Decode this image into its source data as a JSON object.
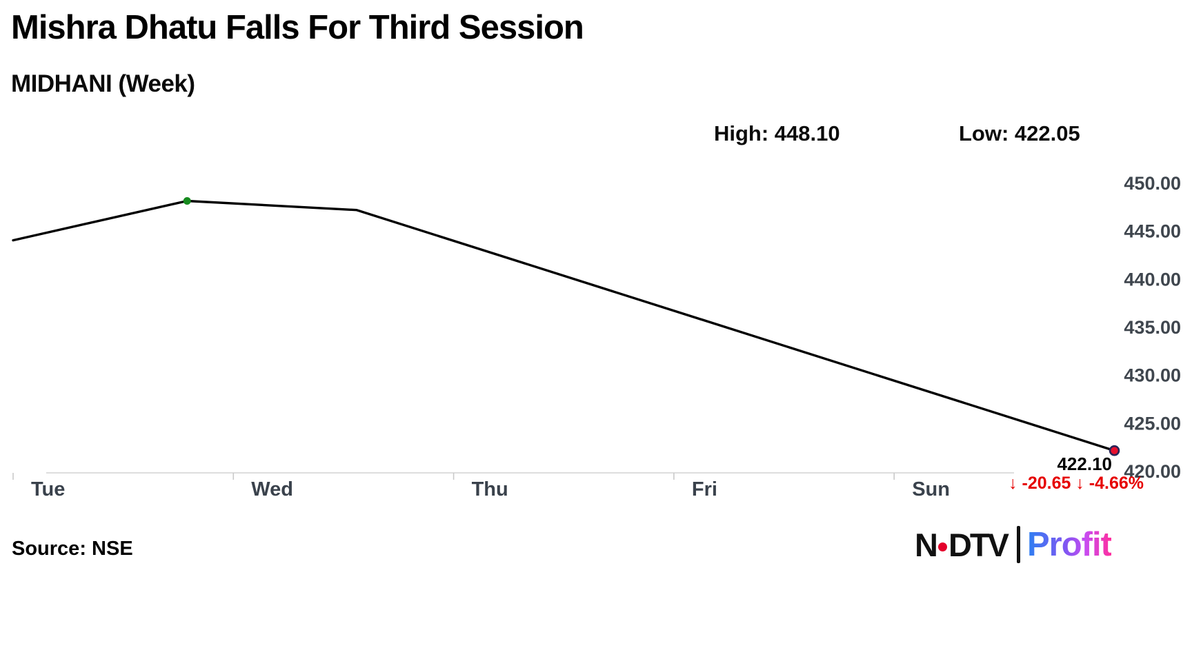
{
  "title": "Mishra Dhatu Falls For Third Session",
  "subtitle": "MIDHANI (Week)",
  "stats": {
    "high": "High: 448.10",
    "low": "Low: 422.05"
  },
  "chart_data": {
    "type": "line",
    "title": "MIDHANI (Week)",
    "series_name": "MIDHANI weekly price",
    "categories": [
      "Tue",
      "Wed",
      "Thu",
      "Fri",
      "Sun"
    ],
    "points": [
      {
        "x": 0.0,
        "y": 444.0
      },
      {
        "x": 0.79,
        "y": 448.1
      },
      {
        "x": 1.56,
        "y": 447.15
      },
      {
        "x": 5.0,
        "y": 422.1
      }
    ],
    "x_unit": "sessions (0 = Tue, labels mark day start)",
    "xlim": [
      0,
      5.02
    ],
    "y_ticks": [
      450,
      445,
      440,
      435,
      430,
      425,
      420
    ],
    "y_tick_labels": [
      "450.00",
      "445.00",
      "440.00",
      "435.00",
      "430.00",
      "425.00",
      "420.00"
    ],
    "ylim": [
      418,
      452
    ],
    "y_axis_side": "right",
    "grid": false,
    "high": 448.1,
    "low": 422.05,
    "last": {
      "value": 422.1,
      "change": -20.65,
      "change_pct": -4.66
    },
    "markers": [
      {
        "index": 1,
        "type": "week-high",
        "fill": "#168a1e"
      },
      {
        "index": 3,
        "type": "last-price",
        "fill": "#e8102e",
        "ring": "#2a2558"
      }
    ],
    "line_color": "#000000"
  },
  "annotations": {
    "last_price": "422.10",
    "change_text": "↓ -20.65 ↓ -4.66%"
  },
  "footer": {
    "source": "Source: NSE",
    "logo": {
      "ndtv_n": "N",
      "ndtv_dtv": "DTV",
      "red_dot_icon": "ndtv-red-dot",
      "profit": "Profit"
    }
  },
  "colors": {
    "negative_red": "#e60000",
    "axis_line": "#d2d2d2",
    "tick": "#c9c9c9",
    "day_label": "#3a424c",
    "y_label": "#3f464e",
    "text_black": "#0b0b0b"
  }
}
